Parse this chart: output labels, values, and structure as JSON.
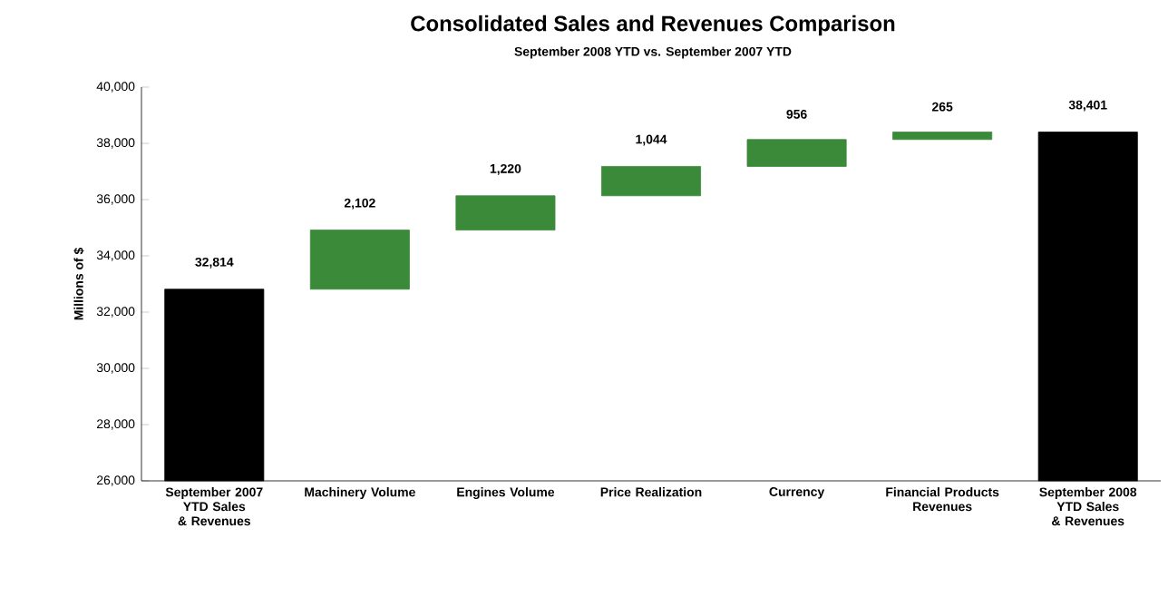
{
  "chart_data": {
    "type": "bar",
    "title": "Consolidated Sales and Revenues Comparison",
    "subtitle": "September 2008 YTD vs. September 2007 YTD",
    "ylabel": "Millions of $",
    "categories": [
      "September 2007 YTD Sales & Revenues",
      "Machinery Volume",
      "Engines Volume",
      "Price Realization",
      "Currency",
      "Financial Products Revenues",
      "September 2008 YTD Sales & Revenues"
    ],
    "values": [
      32814,
      2102,
      1220,
      1044,
      956,
      265,
      38401
    ],
    "base": [
      null,
      32814,
      34916,
      36136,
      37180,
      38136,
      null
    ],
    "colors": [
      "#000000",
      "#3a8a3a",
      "#3a8a3a",
      "#3a8a3a",
      "#3a8a3a",
      "#3a8a3a",
      "#000000"
    ],
    "value_labels": [
      "32,814",
      "2,102",
      "1,220",
      "1,044",
      "956",
      "265",
      "38,401"
    ],
    "ylim": [
      26000,
      40000
    ],
    "yticks": [
      {
        "value": 26000,
        "label": "26,000"
      },
      {
        "value": 28000,
        "label": "28,000"
      },
      {
        "value": 30000,
        "label": "30,000"
      },
      {
        "value": 32000,
        "label": "32,000"
      },
      {
        "value": 34000,
        "label": "34,000"
      },
      {
        "value": 36000,
        "label": "36,000"
      },
      {
        "value": 38000,
        "label": "38,000"
      },
      {
        "value": 40000,
        "label": "40,000"
      }
    ]
  }
}
